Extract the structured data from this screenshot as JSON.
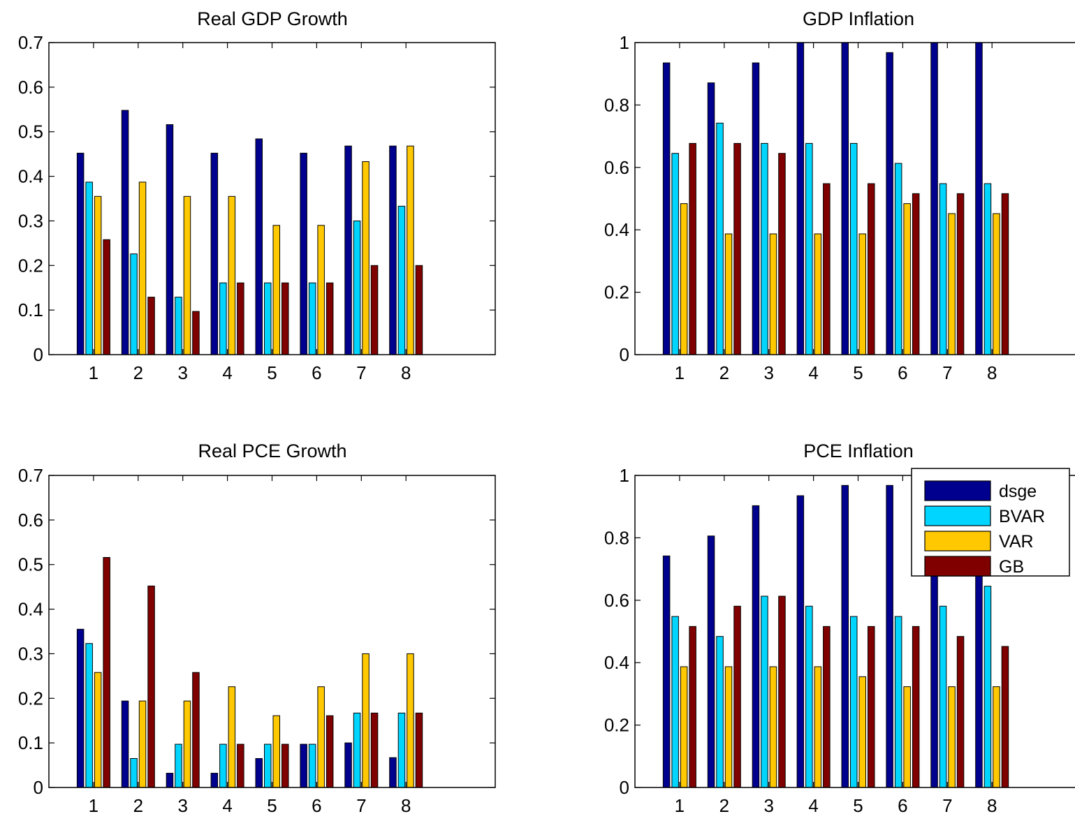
{
  "colors": {
    "dsge": "#00008F",
    "BVAR": "#00D5FF",
    "VAR": "#FFC800",
    "GB": "#800000"
  },
  "legend": [
    "dsge",
    "BVAR",
    "VAR",
    "GB"
  ],
  "chart_data": [
    {
      "type": "bar",
      "title": "Real GDP Growth",
      "xlabel": "",
      "ylabel": "",
      "categories": [
        "1",
        "2",
        "3",
        "4",
        "5",
        "6",
        "7",
        "8"
      ],
      "ylim": [
        0,
        0.7
      ],
      "yticks": [
        "0",
        "0.1",
        "0.2",
        "0.3",
        "0.4",
        "0.5",
        "0.6",
        "0.7"
      ],
      "xlim": [
        0,
        10
      ],
      "grid": false,
      "series": [
        {
          "name": "dsge",
          "values": [
            0.452,
            0.548,
            0.516,
            0.452,
            0.484,
            0.452,
            0.468,
            0.468
          ]
        },
        {
          "name": "BVAR",
          "values": [
            0.387,
            0.226,
            0.129,
            0.161,
            0.161,
            0.161,
            0.3,
            0.333
          ]
        },
        {
          "name": "VAR",
          "values": [
            0.355,
            0.387,
            0.355,
            0.355,
            0.29,
            0.29,
            0.433,
            0.468
          ]
        },
        {
          "name": "GB",
          "values": [
            0.258,
            0.129,
            0.097,
            0.161,
            0.161,
            0.161,
            0.2,
            0.2
          ]
        }
      ]
    },
    {
      "type": "bar",
      "title": "GDP Inflation",
      "xlabel": "",
      "ylabel": "",
      "categories": [
        "1",
        "2",
        "3",
        "4",
        "5",
        "6",
        "7",
        "8"
      ],
      "ylim": [
        0,
        1
      ],
      "yticks": [
        "0",
        "0.2",
        "0.4",
        "0.6",
        "0.8",
        "1"
      ],
      "xlim": [
        0,
        10
      ],
      "grid": false,
      "series": [
        {
          "name": "dsge",
          "values": [
            0.935,
            0.871,
            0.935,
            1.0,
            1.0,
            0.968,
            1.0,
            1.0
          ]
        },
        {
          "name": "BVAR",
          "values": [
            0.645,
            0.742,
            0.677,
            0.677,
            0.677,
            0.613,
            0.548,
            0.548
          ]
        },
        {
          "name": "VAR",
          "values": [
            0.484,
            0.387,
            0.387,
            0.387,
            0.387,
            0.484,
            0.452,
            0.452
          ]
        },
        {
          "name": "GB",
          "values": [
            0.677,
            0.677,
            0.645,
            0.548,
            0.548,
            0.516,
            0.516,
            0.516
          ]
        }
      ]
    },
    {
      "type": "bar",
      "title": "Real PCE Growth",
      "xlabel": "",
      "ylabel": "",
      "categories": [
        "1",
        "2",
        "3",
        "4",
        "5",
        "6",
        "7",
        "8"
      ],
      "ylim": [
        0,
        0.7
      ],
      "yticks": [
        "0",
        "0.1",
        "0.2",
        "0.3",
        "0.4",
        "0.5",
        "0.6",
        "0.7"
      ],
      "xlim": [
        0,
        10
      ],
      "grid": false,
      "series": [
        {
          "name": "dsge",
          "values": [
            0.355,
            0.194,
            0.032,
            0.032,
            0.065,
            0.097,
            0.1,
            0.067
          ]
        },
        {
          "name": "BVAR",
          "values": [
            0.323,
            0.065,
            0.097,
            0.097,
            0.097,
            0.097,
            0.167,
            0.167
          ]
        },
        {
          "name": "VAR",
          "values": [
            0.258,
            0.194,
            0.194,
            0.226,
            0.161,
            0.226,
            0.3,
            0.3
          ]
        },
        {
          "name": "GB",
          "values": [
            0.516,
            0.452,
            0.258,
            0.097,
            0.097,
            0.161,
            0.167,
            0.167
          ]
        }
      ]
    },
    {
      "type": "bar",
      "title": "PCE Inflation",
      "xlabel": "",
      "ylabel": "",
      "categories": [
        "1",
        "2",
        "3",
        "4",
        "5",
        "6",
        "7",
        "8"
      ],
      "ylim": [
        0,
        1
      ],
      "yticks": [
        "0",
        "0.2",
        "0.4",
        "0.6",
        "0.8",
        "1"
      ],
      "xlim": [
        0,
        10
      ],
      "grid": false,
      "legend_position": "top-right",
      "series": [
        {
          "name": "dsge",
          "values": [
            0.742,
            0.806,
            0.903,
            0.935,
            0.968,
            0.968,
            1.0,
            1.0
          ]
        },
        {
          "name": "BVAR",
          "values": [
            0.548,
            0.484,
            0.613,
            0.581,
            0.548,
            0.548,
            0.581,
            0.645
          ]
        },
        {
          "name": "VAR",
          "values": [
            0.387,
            0.387,
            0.387,
            0.387,
            0.355,
            0.323,
            0.323,
            0.323
          ]
        },
        {
          "name": "GB",
          "values": [
            0.516,
            0.581,
            0.613,
            0.516,
            0.516,
            0.516,
            0.484,
            0.452
          ]
        }
      ]
    }
  ]
}
